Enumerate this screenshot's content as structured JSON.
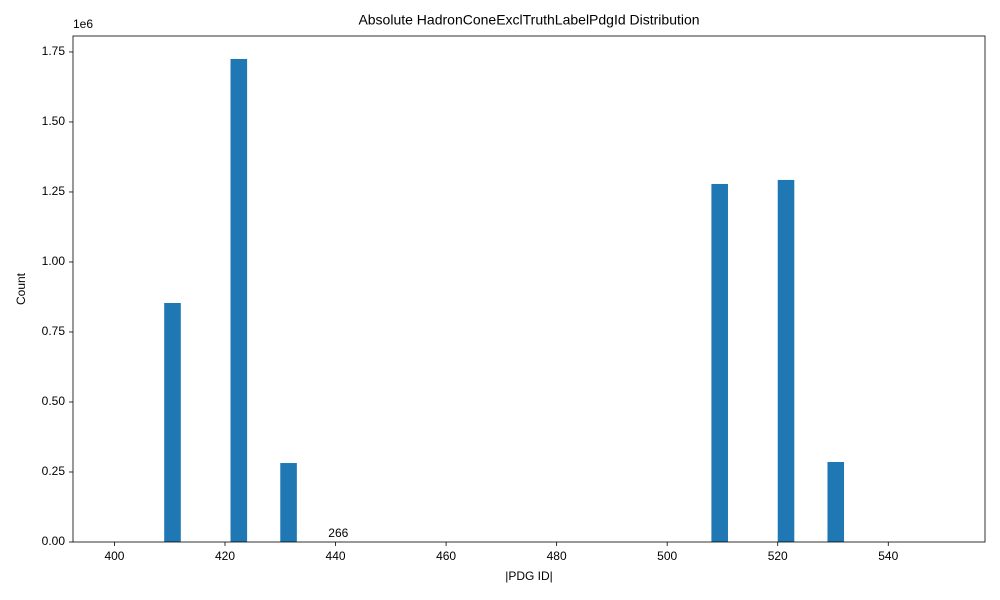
{
  "chart_data": {
    "type": "histogram",
    "title": "Absolute HadronConeExclTruthLabelPdgId Distribution",
    "x_label": "|PDG ID|",
    "y_label": "Count",
    "y_offset_label": "1e6",
    "color": "#1f77b4",
    "bins": [
      400,
      403,
      406,
      409,
      412,
      415,
      418,
      421,
      424,
      427,
      430,
      433,
      436,
      439,
      442,
      445,
      448,
      451,
      454,
      457,
      460,
      463,
      466,
      469,
      472,
      475,
      478,
      481,
      484,
      487,
      490,
      493,
      496,
      499,
      502,
      505,
      508,
      511,
      514,
      517,
      520,
      523,
      526,
      529,
      532,
      535,
      538,
      541,
      544,
      547,
      550
    ],
    "values": [
      0,
      0,
      0,
      853600,
      0,
      0,
      0,
      1725000,
      0,
      0,
      282000,
      0,
      0,
      266,
      0,
      0,
      0,
      0,
      0,
      0,
      0,
      0,
      0,
      0,
      0,
      0,
      0,
      0,
      0,
      0,
      0,
      0,
      0,
      0,
      0,
      0,
      1278600,
      0,
      0,
      0,
      1293000,
      0,
      0,
      285700,
      0,
      0,
      0,
      0,
      0,
      0
    ],
    "xlim": [
      392.5,
      557.5
    ],
    "xticks": [
      400,
      420,
      440,
      460,
      480,
      500,
      520,
      540
    ],
    "ylim": [
      0,
      1807000
    ],
    "yticks": [
      {
        "value": 0,
        "label": "0.00"
      },
      {
        "value": 250000,
        "label": "0.25"
      },
      {
        "value": 500000,
        "label": "0.50"
      },
      {
        "value": 750000,
        "label": "0.75"
      },
      {
        "value": 1000000,
        "label": "1.00"
      },
      {
        "value": 1250000,
        "label": "1.25"
      },
      {
        "value": 1500000,
        "label": "1.50"
      },
      {
        "value": 1750000,
        "label": "1.75"
      }
    ],
    "grid": false
  }
}
